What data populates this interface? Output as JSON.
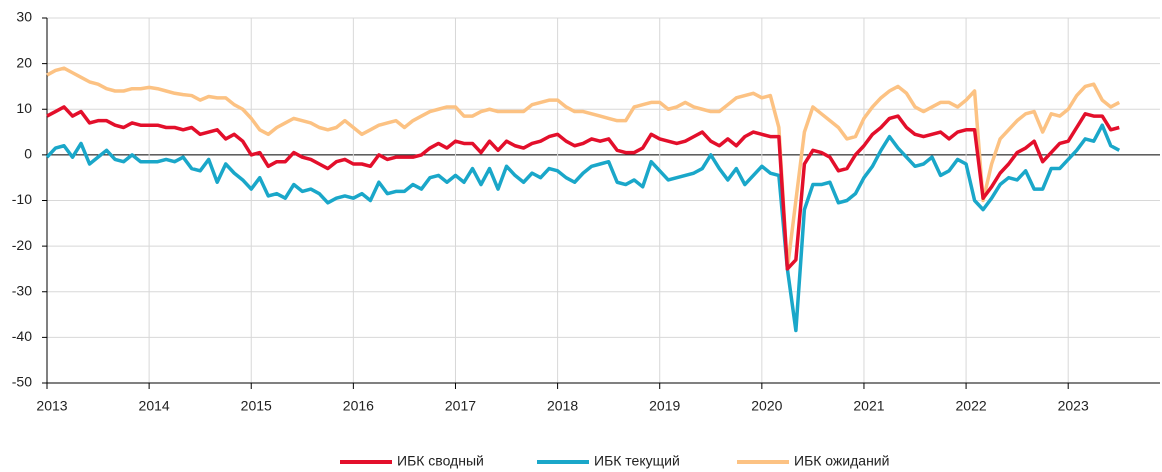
{
  "chart_data": {
    "type": "line",
    "categories": [
      "2013",
      null,
      null,
      null,
      null,
      null,
      null,
      null,
      null,
      null,
      null,
      null,
      "2014",
      null,
      null,
      null,
      null,
      null,
      null,
      null,
      null,
      null,
      null,
      null,
      "2015",
      null,
      null,
      null,
      null,
      null,
      null,
      null,
      null,
      null,
      null,
      null,
      "2016",
      null,
      null,
      null,
      null,
      null,
      null,
      null,
      null,
      null,
      null,
      null,
      "2017",
      null,
      null,
      null,
      null,
      null,
      null,
      null,
      null,
      null,
      null,
      null,
      "2018",
      null,
      null,
      null,
      null,
      null,
      null,
      null,
      null,
      null,
      null,
      null,
      "2019",
      null,
      null,
      null,
      null,
      null,
      null,
      null,
      null,
      null,
      null,
      null,
      "2020",
      null,
      null,
      null,
      null,
      null,
      null,
      null,
      null,
      null,
      null,
      null,
      "2021",
      null,
      null,
      null,
      null,
      null,
      null,
      null,
      null,
      null,
      null,
      null,
      "2022",
      null,
      null,
      null,
      null,
      null,
      null,
      null,
      null,
      null,
      null,
      null,
      "2023",
      null,
      null,
      null,
      null,
      null,
      null
    ],
    "series": [
      {
        "name": "ИБК сводный",
        "color": "#e30f2b",
        "values": [
          8.5,
          9.5,
          10.5,
          8.5,
          9.5,
          7,
          7.5,
          7.5,
          6.5,
          6,
          7,
          6.5,
          6.5,
          6.5,
          6,
          6,
          5.5,
          6,
          4.5,
          5,
          5.5,
          3.5,
          4.5,
          3,
          0,
          0.5,
          -2.5,
          -1.5,
          -1.5,
          0.5,
          -0.5,
          -1,
          -2,
          -3,
          -1.5,
          -1,
          -2,
          -2,
          -2.5,
          0,
          -1,
          -0.5,
          -0.5,
          -0.5,
          0,
          1.5,
          2.5,
          1.5,
          3,
          2.5,
          2.5,
          0.5,
          3,
          1,
          3,
          2,
          1.5,
          2.5,
          3,
          4,
          4.5,
          3,
          2,
          2.5,
          3.5,
          3,
          3.5,
          1,
          0.5,
          0.5,
          1.5,
          4.5,
          3.5,
          3,
          2.5,
          3,
          4,
          5,
          3,
          2,
          3.5,
          2,
          4,
          5,
          4.5,
          4,
          4,
          -25,
          -23,
          -2,
          1,
          0.5,
          -0.5,
          -3.5,
          -3,
          0,
          2,
          4.5,
          6,
          8,
          8.5,
          6,
          4.5,
          4,
          4.5,
          5,
          3.5,
          5,
          5.5,
          5.5,
          -9.5,
          -7,
          -4,
          -2,
          0.5,
          1.5,
          3,
          -1.5,
          0.5,
          2.5,
          3,
          6,
          9,
          8.5,
          8.5,
          5.5,
          6
        ]
      },
      {
        "name": "ИБК текущий",
        "color": "#1aa7c9",
        "values": [
          -0.5,
          1.5,
          2,
          -0.5,
          2.5,
          -2,
          -0.5,
          1,
          -1,
          -1.5,
          0,
          -1.5,
          -1.5,
          -1.5,
          -1,
          -1.5,
          -0.5,
          -3,
          -3.5,
          -1,
          -6,
          -2,
          -4,
          -5.5,
          -7.5,
          -5,
          -9,
          -8.5,
          -9.5,
          -6.5,
          -8,
          -7.5,
          -8.5,
          -10.5,
          -9.5,
          -9,
          -9.5,
          -8.5,
          -10,
          -6,
          -8.5,
          -8,
          -8,
          -6.5,
          -7.5,
          -5,
          -4.5,
          -6,
          -4.5,
          -6,
          -3,
          -6.5,
          -3,
          -7.5,
          -2.5,
          -4.5,
          -6,
          -4,
          -5,
          -3,
          -3.5,
          -5,
          -6,
          -4,
          -2.5,
          -2,
          -1.5,
          -6,
          -6.5,
          -5.5,
          -7,
          -1.5,
          -3.5,
          -5.5,
          -5,
          -4.5,
          -4,
          -3,
          0,
          -3,
          -5.5,
          -3,
          -6.5,
          -4.5,
          -2.5,
          -4,
          -4.5,
          -25,
          -38.5,
          -12,
          -6.5,
          -6.5,
          -6,
          -10.5,
          -10,
          -8.5,
          -5,
          -2.5,
          1,
          4,
          1.5,
          -0.5,
          -2.5,
          -2,
          -0.5,
          -4.5,
          -3.5,
          -1,
          -2,
          -10,
          -12,
          -9.5,
          -6.5,
          -5,
          -5.5,
          -3.5,
          -7.5,
          -7.5,
          -3,
          -3,
          -1,
          1,
          3.5,
          3,
          6.5,
          2,
          1
        ]
      },
      {
        "name": "ИБК ожиданий",
        "color": "#fcc283",
        "values": [
          17.5,
          18.5,
          19,
          18,
          17,
          16,
          15.5,
          14.5,
          14,
          14,
          14.5,
          14.5,
          14.8,
          14.5,
          14,
          13.5,
          13.2,
          13,
          12,
          12.8,
          12.5,
          12.5,
          11,
          10,
          8,
          5.5,
          4.5,
          6,
          7,
          8,
          7.5,
          7,
          6,
          5.5,
          6,
          7.5,
          6,
          4.5,
          5.5,
          6.5,
          7,
          7.5,
          6,
          7.5,
          8.5,
          9.5,
          10,
          10.5,
          10.5,
          8.5,
          8.5,
          9.5,
          10,
          9.5,
          9.5,
          9.5,
          9.5,
          11,
          11.5,
          12,
          12,
          10.5,
          9.5,
          9.5,
          9,
          8.5,
          8,
          7.5,
          7.5,
          10.5,
          11,
          11.5,
          11.5,
          10,
          10.5,
          11.5,
          10.5,
          10,
          9.5,
          9.5,
          11,
          12.5,
          13,
          13.5,
          12.5,
          13,
          6,
          -25,
          -10,
          5,
          10.5,
          9,
          7.5,
          6,
          3.5,
          4,
          8,
          10.5,
          12.5,
          14,
          15,
          13.5,
          10.5,
          9.5,
          10.5,
          11.5,
          11.5,
          10.5,
          12,
          14,
          -10,
          -2,
          3.5,
          5.5,
          7.5,
          9,
          9.5,
          5,
          9,
          8.5,
          10,
          13,
          15,
          15.5,
          12,
          10.5,
          11.5
        ]
      }
    ],
    "ylim": [
      -50,
      30
    ],
    "yticks": [
      -50,
      -40,
      -30,
      -20,
      -10,
      0,
      10,
      20,
      30
    ],
    "grid": true,
    "legend": "bottom"
  }
}
